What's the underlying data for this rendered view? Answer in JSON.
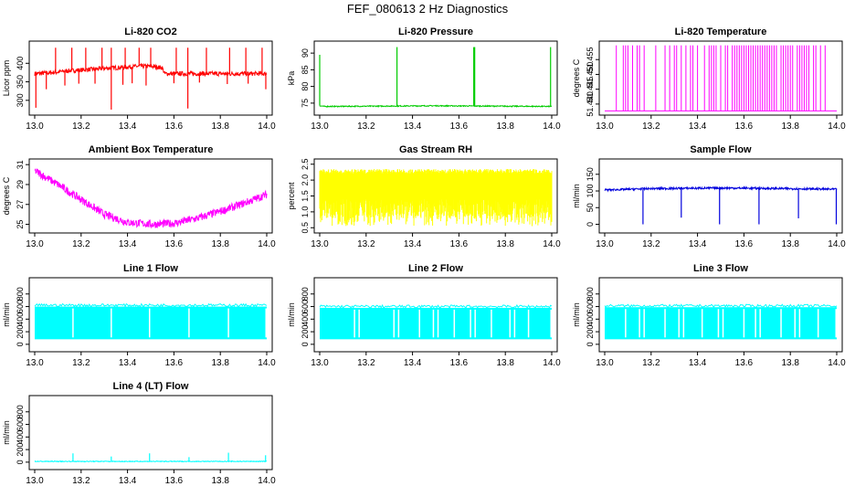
{
  "figure": {
    "title": "FEF_080613  2 Hz Diagnostics"
  },
  "chart_data": [
    {
      "type": "line",
      "title": "Li-820 CO2",
      "ylabel": "Licor ppm",
      "color": "#ff0000",
      "xlim": [
        13.0,
        14.0
      ],
      "ylim": [
        270,
        450
      ],
      "xticks": [
        "13.0",
        "13.2",
        "13.4",
        "13.6",
        "13.8",
        "14.0"
      ],
      "yticks": [
        {
          "value": 300,
          "label": "300"
        },
        {
          "value": 350,
          "label": "350"
        },
        {
          "value": 400,
          "label": "400"
        }
      ],
      "series": [
        {
          "name": "CO2",
          "baseline": [
            [
              13.0,
              372
            ],
            [
              13.08,
              375
            ],
            [
              13.15,
              380
            ],
            [
              13.25,
              384
            ],
            [
              13.35,
              388
            ],
            [
              13.45,
              392
            ],
            [
              13.5,
              392
            ],
            [
              13.55,
              388
            ],
            [
              13.56,
              372
            ],
            [
              14.0,
              372
            ]
          ],
          "noise": 6,
          "spikes": [
            {
              "x": 13.09,
              "y": 442
            },
            {
              "x": 13.16,
              "y": 442
            },
            {
              "x": 13.22,
              "y": 442
            },
            {
              "x": 13.29,
              "y": 442
            },
            {
              "x": 13.33,
              "y": 442
            },
            {
              "x": 13.39,
              "y": 442
            },
            {
              "x": 13.45,
              "y": 442
            },
            {
              "x": 13.5,
              "y": 442
            },
            {
              "x": 13.61,
              "y": 442
            },
            {
              "x": 13.66,
              "y": 442
            },
            {
              "x": 13.74,
              "y": 442
            },
            {
              "x": 13.84,
              "y": 442
            },
            {
              "x": 13.91,
              "y": 442
            },
            {
              "x": 13.98,
              "y": 442
            },
            {
              "x": 13.005,
              "y": 280
            },
            {
              "x": 13.05,
              "y": 330
            },
            {
              "x": 13.13,
              "y": 340
            },
            {
              "x": 13.19,
              "y": 345
            },
            {
              "x": 13.26,
              "y": 345
            },
            {
              "x": 13.33,
              "y": 275
            },
            {
              "x": 13.38,
              "y": 342
            },
            {
              "x": 13.42,
              "y": 346
            },
            {
              "x": 13.48,
              "y": 340
            },
            {
              "x": 13.6,
              "y": 346
            },
            {
              "x": 13.66,
              "y": 278
            },
            {
              "x": 13.71,
              "y": 348
            },
            {
              "x": 13.83,
              "y": 344
            },
            {
              "x": 13.92,
              "y": 345
            },
            {
              "x": 13.996,
              "y": 330
            }
          ]
        }
      ]
    },
    {
      "type": "line",
      "title": "Li-820 Pressure",
      "ylabel": "kPa",
      "color": "#00cc00",
      "xlim": [
        13.0,
        14.0
      ],
      "ylim": [
        72.5,
        92.5
      ],
      "xticks": [
        "13.0",
        "13.2",
        "13.4",
        "13.6",
        "13.8",
        "14.0"
      ],
      "yticks": [
        {
          "value": 75,
          "label": "75"
        },
        {
          "value": 80,
          "label": "80"
        },
        {
          "value": 85,
          "label": "85"
        },
        {
          "value": 90,
          "label": "90"
        }
      ],
      "series": [
        {
          "name": "Pressure",
          "baseline": [
            [
              13.0,
              74.2
            ],
            [
              13.02,
              74.0
            ],
            [
              13.5,
              74.2
            ],
            [
              14.0,
              74.0
            ]
          ],
          "noise": 0.15,
          "spikes": [
            {
              "x": 13.0,
              "y": 89.5
            },
            {
              "x": 13.333,
              "y": 91.8
            },
            {
              "x": 13.664,
              "y": 91.8
            },
            {
              "x": 13.668,
              "y": 91.8
            },
            {
              "x": 13.995,
              "y": 91.8
            }
          ]
        }
      ]
    },
    {
      "type": "line",
      "title": "Li-820 Temperature",
      "ylabel": "degrees C",
      "color": "#ff00ff",
      "xlim": [
        13.0,
        14.0
      ],
      "ylim": [
        51.4375,
        51.46
      ],
      "xticks": [
        "13.0",
        "13.2",
        "13.4",
        "13.6",
        "13.8",
        "14.0"
      ],
      "yticks": [
        {
          "value": 51.44,
          "label": "51.440"
        },
        {
          "value": 51.445,
          "label": "51.445"
        },
        {
          "value": 51.45,
          "label": "51.450"
        },
        {
          "value": 51.455,
          "label": "51.455"
        }
      ],
      "series": [
        {
          "name": "Temperature",
          "low": 51.4377,
          "high": 51.4598,
          "toggles": [
            13.05,
            13.08,
            13.09,
            13.1,
            13.12,
            13.14,
            13.15,
            13.17,
            13.22,
            13.26,
            13.28,
            13.3,
            13.31,
            13.33,
            13.35,
            13.37,
            13.38,
            13.4,
            13.43,
            13.45,
            13.46,
            13.47,
            13.48,
            13.5,
            13.52,
            13.53,
            13.55,
            13.56,
            13.57,
            13.58,
            13.59,
            13.6,
            13.61,
            13.62,
            13.63,
            13.64,
            13.65,
            13.66,
            13.67,
            13.68,
            13.69,
            13.7,
            13.71,
            13.72,
            13.73,
            13.74,
            13.76,
            13.77,
            13.78,
            13.79,
            13.8,
            13.81,
            13.83,
            13.84,
            13.85,
            13.86,
            13.87,
            13.88,
            13.9,
            13.91,
            13.93,
            13.95
          ]
        }
      ]
    },
    {
      "type": "line",
      "title": "Ambient Box Temperature",
      "ylabel": "degrees C",
      "color": "#ff00ff",
      "xlim": [
        13.0,
        14.0
      ],
      "ylim": [
        24.5,
        31.2
      ],
      "xticks": [
        "13.0",
        "13.2",
        "13.4",
        "13.6",
        "13.8",
        "14.0"
      ],
      "yticks": [
        {
          "value": 25,
          "label": "25"
        },
        {
          "value": 27,
          "label": "27"
        },
        {
          "value": 29,
          "label": "29"
        },
        {
          "value": 31,
          "label": "31"
        }
      ],
      "series": [
        {
          "name": "Box temperature",
          "baseline": [
            [
              13.0,
              30.4
            ],
            [
              13.1,
              29.0
            ],
            [
              13.2,
              27.5
            ],
            [
              13.3,
              26.0
            ],
            [
              13.4,
              25.2
            ],
            [
              13.5,
              25.0
            ],
            [
              13.6,
              25.1
            ],
            [
              13.7,
              25.6
            ],
            [
              13.8,
              26.3
            ],
            [
              13.9,
              27.1
            ],
            [
              14.0,
              28.0
            ]
          ],
          "noise": 0.4,
          "spikes": []
        }
      ]
    },
    {
      "type": "line",
      "title": "Gas Stream RH",
      "ylabel": "percent",
      "color": "#ffff00",
      "xlim": [
        13.0,
        14.0
      ],
      "ylim": [
        0.45,
        2.55
      ],
      "xticks": [
        "13.0",
        "13.2",
        "13.4",
        "13.6",
        "13.8",
        "14.0"
      ],
      "yticks": [
        {
          "value": 0.5,
          "label": "0.5"
        },
        {
          "value": 1.0,
          "label": "1.0"
        },
        {
          "value": 1.5,
          "label": "1.5"
        },
        {
          "value": 2.0,
          "label": "2.0"
        },
        {
          "value": 2.5,
          "label": "2.5"
        }
      ],
      "series": [
        {
          "name": "RH",
          "band": [
            0.8,
            2.35
          ],
          "dips": 0.55
        }
      ]
    },
    {
      "type": "line",
      "title": "Sample Flow",
      "ylabel": "ml/min",
      "color": "#0000dd",
      "xlim": [
        13.0,
        14.0
      ],
      "ylim": [
        -15,
        185
      ],
      "xticks": [
        "13.0",
        "13.2",
        "13.4",
        "13.6",
        "13.8",
        "14.0"
      ],
      "yticks": [
        {
          "value": 0,
          "label": "0"
        },
        {
          "value": 50,
          "label": "50"
        },
        {
          "value": 100,
          "label": "100"
        },
        {
          "value": 150,
          "label": "150"
        }
      ],
      "series": [
        {
          "name": "Sample flow",
          "baseline": [
            [
              13.0,
              103
            ],
            [
              13.2,
              107
            ],
            [
              13.5,
              109
            ],
            [
              13.8,
              107
            ],
            [
              14.0,
              105
            ]
          ],
          "noise": 3,
          "spikes": [
            {
              "x": 13.165,
              "y": 0
            },
            {
              "x": 13.33,
              "y": 20
            },
            {
              "x": 13.495,
              "y": 0
            },
            {
              "x": 13.665,
              "y": 0
            },
            {
              "x": 13.835,
              "y": 18
            },
            {
              "x": 13.998,
              "y": 0
            }
          ]
        }
      ]
    },
    {
      "type": "line",
      "title": "Line 1 Flow",
      "ylabel": "ml/min",
      "color": "#00ffff",
      "xlim": [
        13.0,
        14.0
      ],
      "ylim": [
        -60,
        1000
      ],
      "xticks": [
        "13.0",
        "13.2",
        "13.4",
        "13.6",
        "13.8",
        "14.0"
      ],
      "yticks": [
        {
          "value": 0,
          "label": "0"
        },
        {
          "value": 200,
          "label": "200"
        },
        {
          "value": 400,
          "label": "400"
        },
        {
          "value": 600,
          "label": "600"
        },
        {
          "value": 800,
          "label": "800"
        }
      ],
      "series": [
        {
          "name": "Line 1",
          "band": [
            80,
            600
          ],
          "gaps": [
            13.165,
            13.33,
            13.495,
            13.665,
            13.835,
            13.997
          ]
        }
      ]
    },
    {
      "type": "line",
      "title": "Line 2 Flow",
      "ylabel": "ml/min",
      "color": "#00ffff",
      "xlim": [
        13.0,
        14.0
      ],
      "ylim": [
        -60,
        1000
      ],
      "xticks": [
        "13.0",
        "13.2",
        "13.4",
        "13.6",
        "13.8",
        "14.0"
      ],
      "yticks": [
        {
          "value": 0,
          "label": "0"
        },
        {
          "value": 200,
          "label": "200"
        },
        {
          "value": 400,
          "label": "400"
        },
        {
          "value": 600,
          "label": "600"
        },
        {
          "value": 800,
          "label": "800"
        }
      ],
      "series": [
        {
          "name": "Line 2",
          "band": [
            80,
            580
          ],
          "gaps": [
            13.15,
            13.17,
            13.32,
            13.34,
            13.43,
            13.49,
            13.51,
            13.58,
            13.65,
            13.67,
            13.74,
            13.82,
            13.84,
            13.9,
            13.997
          ]
        }
      ]
    },
    {
      "type": "line",
      "title": "Line 3 Flow",
      "ylabel": "ml/min",
      "color": "#00ffff",
      "xlim": [
        13.0,
        14.0
      ],
      "ylim": [
        -60,
        1000
      ],
      "xticks": [
        "13.0",
        "13.2",
        "13.4",
        "13.6",
        "13.8",
        "14.0"
      ],
      "yticks": [
        {
          "value": 0,
          "label": "0"
        },
        {
          "value": 200,
          "label": "200"
        },
        {
          "value": 400,
          "label": "400"
        },
        {
          "value": 600,
          "label": "600"
        },
        {
          "value": 800,
          "label": "800"
        }
      ],
      "series": [
        {
          "name": "Line 3",
          "band": [
            80,
            590
          ],
          "gaps": [
            13.09,
            13.15,
            13.17,
            13.26,
            13.32,
            13.34,
            13.42,
            13.49,
            13.51,
            13.6,
            13.65,
            13.67,
            13.76,
            13.82,
            13.84,
            13.92,
            13.997
          ]
        }
      ]
    },
    {
      "type": "line",
      "title": "Line 4 (LT) Flow",
      "ylabel": "ml/min",
      "color": "#00ffff",
      "xlim": [
        13.0,
        14.0
      ],
      "ylim": [
        -60,
        1000
      ],
      "xticks": [
        "13.0",
        "13.2",
        "13.4",
        "13.6",
        "13.8",
        "14.0"
      ],
      "yticks": [
        {
          "value": 0,
          "label": "0"
        },
        {
          "value": 200,
          "label": "200"
        },
        {
          "value": 400,
          "label": "400"
        },
        {
          "value": 600,
          "label": "600"
        },
        {
          "value": 800,
          "label": "800"
        }
      ],
      "series": [
        {
          "name": "Line 4",
          "baseline": [
            [
              13.0,
              12
            ],
            [
              14.0,
              12
            ]
          ],
          "noise": 6,
          "spikes": [
            {
              "x": 13.165,
              "y": 140
            },
            {
              "x": 13.33,
              "y": 90
            },
            {
              "x": 13.495,
              "y": 140
            },
            {
              "x": 13.665,
              "y": 80
            },
            {
              "x": 13.835,
              "y": 150
            },
            {
              "x": 13.995,
              "y": 110
            }
          ]
        }
      ]
    }
  ]
}
